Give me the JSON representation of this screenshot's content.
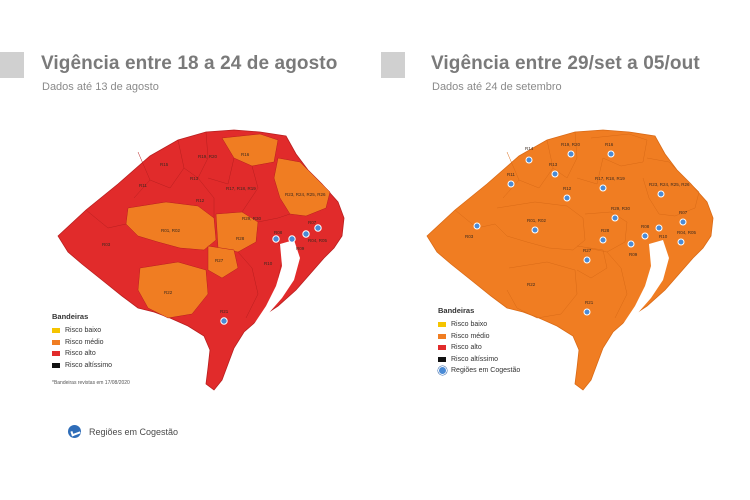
{
  "left": {
    "title": "Vigência entre 18 a 24 de agosto",
    "subtitle": "Dados até 13 de agosto",
    "region_labels": [
      "R15",
      "R19, R20",
      "R16",
      "R14",
      "R13",
      "R11",
      "R12",
      "R17, R18, R19",
      "R23, R24, R25, R26",
      "R29, R30",
      "R01, R02",
      "R28",
      "R03",
      "R27",
      "R08",
      "R10",
      "R09",
      "R22",
      "R21",
      "R07",
      "R04, R05"
    ],
    "legend": {
      "title": "Bandeiras",
      "items": [
        {
          "label": "Risco baixo",
          "color": "#f5c400"
        },
        {
          "label": "Risco médio",
          "color": "#f07d22"
        },
        {
          "label": "Risco alto",
          "color": "#e12b2b"
        },
        {
          "label": "Risco altíssimo",
          "color": "#111111"
        }
      ]
    },
    "note": "*Bandeiras revistas em 17/08/2020",
    "cogestao_label": "Regiões em Cogestão"
  },
  "right": {
    "title": "Vigência entre 29/set a 05/out",
    "subtitle": "Dados até 24 de setembro",
    "region_labels": [
      "R15",
      "R19, R20",
      "R16",
      "R14",
      "R13",
      "R11",
      "R12",
      "R17, R18, R19",
      "R23, R24, R25, R26",
      "R29, R30",
      "R01, R02",
      "R28",
      "R03",
      "R27",
      "R08",
      "R10",
      "R09",
      "R22",
      "R21",
      "R07",
      "R04, R05"
    ],
    "legend": {
      "title": "Bandeiras",
      "items": [
        {
          "label": "Risco baixo",
          "color": "#f5c400"
        },
        {
          "label": "Risco médio",
          "color": "#f07d22"
        },
        {
          "label": "Risco alto",
          "color": "#e12b2b"
        },
        {
          "label": "Risco altíssimo",
          "color": "#111111"
        }
      ]
    },
    "cogestao_label": "Regiões em Cogestão"
  },
  "colors": {
    "red": "#e12b2b",
    "orange": "#f07d22",
    "border": "#c41f1f",
    "border_orange": "#d96a16",
    "lagoon": "#ffffff",
    "pin": "#4a8bd6"
  }
}
